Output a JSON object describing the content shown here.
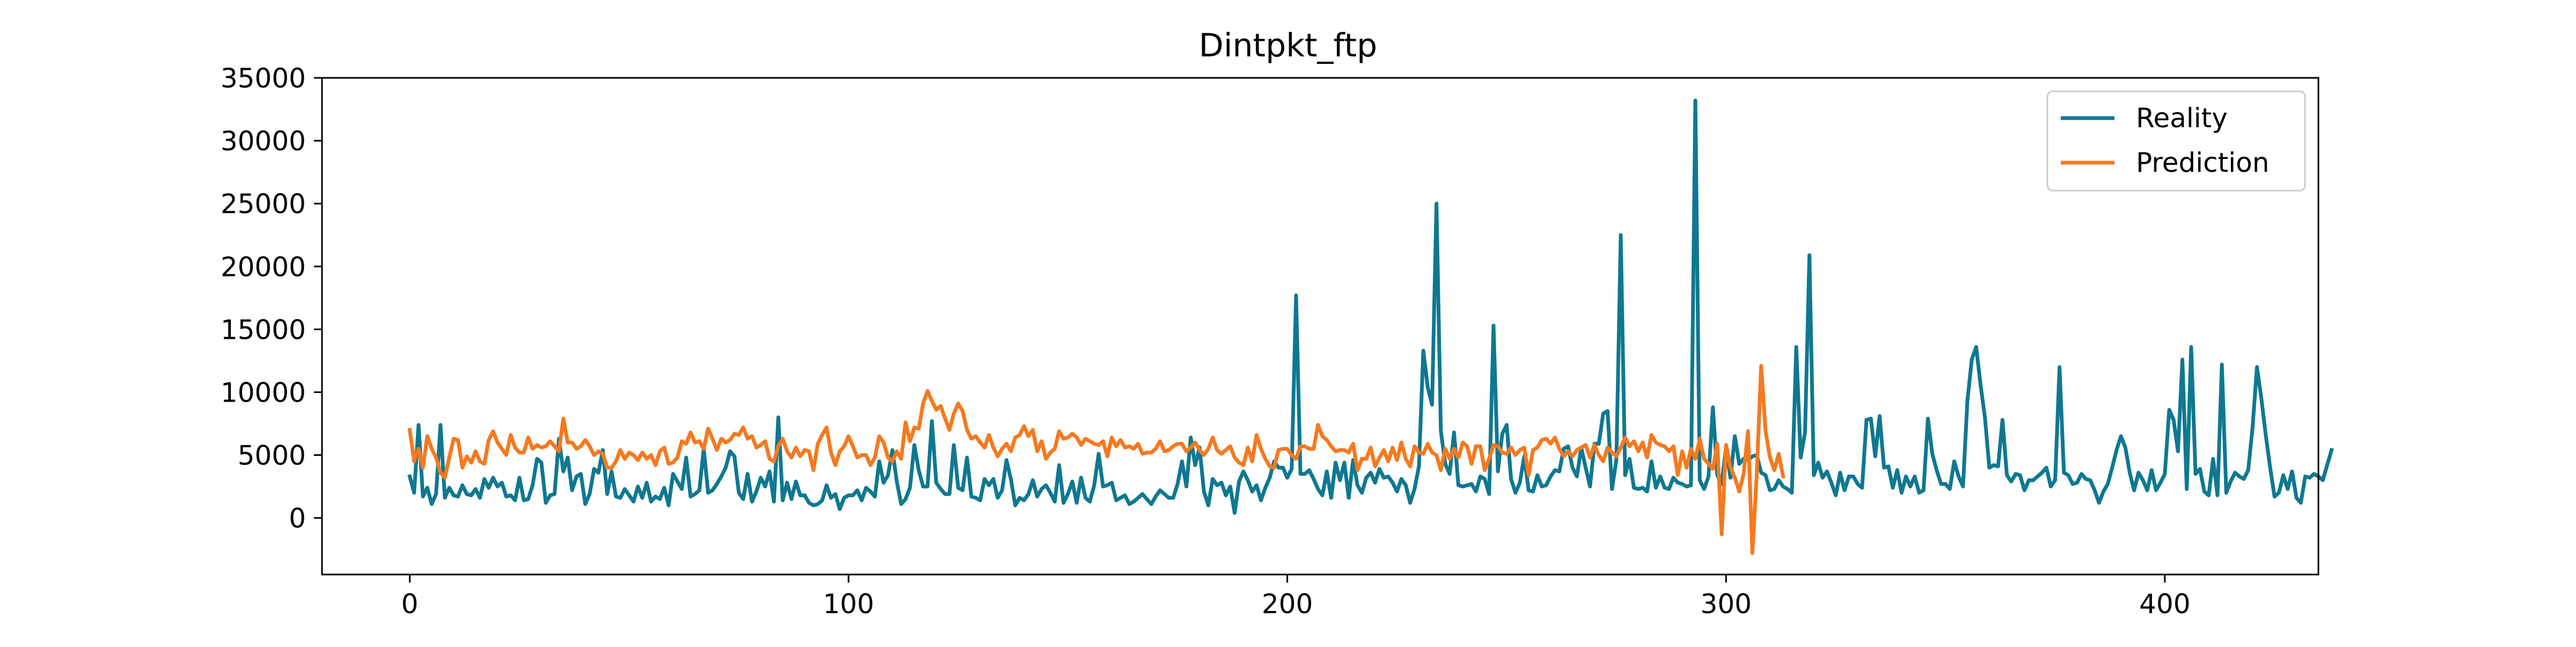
{
  "chart_data": {
    "type": "line",
    "title": "Dintpkt_ftp",
    "xlabel": "",
    "ylabel": "",
    "xlim": [
      -20,
      435
    ],
    "ylim": [
      -4500,
      35000
    ],
    "x_ticks": [
      0,
      100,
      200,
      300,
      400
    ],
    "y_ticks": [
      0,
      5000,
      10000,
      15000,
      20000,
      25000,
      30000,
      35000
    ],
    "grid": false,
    "legend_position": "top-right",
    "series": [
      {
        "name": "Reality",
        "color": "#0f7891",
        "x_start": 0,
        "values": [
          3300,
          2000,
          7400,
          1700,
          2400,
          1100,
          1900,
          7400,
          1600,
          2400,
          1800,
          1700,
          2600,
          1900,
          1800,
          2300,
          1600,
          3100,
          2400,
          3200,
          2500,
          2800,
          1700,
          1800,
          1400,
          3200,
          1400,
          1500,
          2600,
          4700,
          4400,
          1200,
          1800,
          1900,
          6300,
          3700,
          4800,
          2200,
          3300,
          3500,
          1100,
          1900,
          3900,
          3600,
          5400,
          1900,
          3700,
          1700,
          1600,
          2300,
          1800,
          1300,
          2500,
          1600,
          2800,
          1300,
          1700,
          1500,
          2400,
          1000,
          3500,
          2900,
          2300,
          4800,
          1700,
          1900,
          2200,
          5500,
          2000,
          2200,
          2700,
          3300,
          4000,
          5300,
          4900,
          2000,
          1500,
          3500,
          1300,
          2100,
          3200,
          2500,
          3700,
          1300,
          8000,
          1400,
          2800,
          1500,
          2900,
          1800,
          1800,
          1200,
          1000,
          1100,
          1400,
          2600,
          1600,
          1900,
          700,
          1600,
          1800,
          1800,
          2200,
          1400,
          2400,
          2100,
          1700,
          4500,
          2800,
          3400,
          5400,
          2900,
          1100,
          1500,
          2400,
          5800,
          3800,
          2500,
          2500,
          7700,
          2800,
          2300,
          1900,
          1900,
          5800,
          2400,
          2200,
          4800,
          1700,
          1600,
          1400,
          3100,
          2600,
          3100,
          1600,
          2200,
          4600,
          3100,
          1000,
          1600,
          1400,
          1900,
          3000,
          1700,
          2300,
          2600,
          2000,
          1300,
          4200,
          1200,
          1900,
          2900,
          1200,
          3200,
          1600,
          1300,
          2600,
          5100,
          2500,
          2600,
          2800,
          1400,
          1600,
          1800,
          1100,
          1300,
          1600,
          1900,
          1500,
          1100,
          1700,
          2200,
          1900,
          1600,
          1600,
          2700,
          4500,
          2500,
          6400,
          4200,
          5600,
          2100,
          1000,
          3100,
          2600,
          2800,
          1800,
          2500,
          400,
          2900,
          3700,
          3000,
          2100,
          2600,
          1400,
          2400,
          3200,
          4500,
          4000,
          4000,
          3200,
          3900,
          17700,
          3500,
          3500,
          3800,
          3100,
          2300,
          1800,
          3700,
          1600,
          4400,
          3000,
          4400,
          1600,
          4600,
          2600,
          2000,
          3200,
          3600,
          2800,
          3900,
          3200,
          3300,
          2800,
          2100,
          3100,
          2600,
          1200,
          2300,
          4100,
          13300,
          10400,
          9000,
          25000,
          6900,
          4300,
          3500,
          6800,
          2600,
          2500,
          2600,
          2700,
          2100,
          3300,
          3100,
          1900,
          15300,
          3700,
          6700,
          7400,
          3100,
          2000,
          2800,
          4900,
          2200,
          2100,
          3400,
          2500,
          2600,
          3300,
          3800,
          3700,
          5500,
          5700,
          4000,
          3300,
          5600,
          4000,
          2500,
          5900,
          5900,
          8300,
          8500,
          2300,
          4600,
          22500,
          3400,
          4700,
          2400,
          2300,
          2400,
          2100,
          4500,
          2400,
          3300,
          2400,
          2300,
          3200,
          2800,
          2700,
          2500,
          2600,
          33200,
          3000,
          2300,
          3300,
          8800,
          3400,
          2700,
          5600,
          3200,
          6500,
          4300,
          4700,
          4600,
          4900,
          5000,
          3600,
          3400,
          2200,
          2300,
          3000,
          2500,
          2300,
          2000,
          13600,
          4800,
          6800,
          20900,
          3400,
          4400,
          3200,
          3700,
          2800,
          1800,
          3600,
          2200,
          3300,
          3300,
          2700,
          2400,
          7800,
          7900,
          4900,
          8100,
          4000,
          4100,
          2400,
          3800,
          2000,
          3300,
          2500,
          3300,
          2000,
          2200,
          7900,
          5100,
          3800,
          2700,
          2700,
          2300,
          4500,
          3300,
          2500,
          9300,
          12600,
          13600,
          10600,
          8000,
          4000,
          4200,
          4100,
          7800,
          3400,
          2900,
          3500,
          3400,
          2200,
          3000,
          3000,
          3300,
          3600,
          4000,
          2500,
          3000,
          12000,
          3600,
          3400,
          2700,
          2800,
          3500,
          3100,
          3000,
          2200,
          1200,
          2100,
          2700,
          4000,
          5400,
          6500,
          5600,
          3600,
          2200,
          3600,
          3000,
          2200,
          3800,
          2200,
          2800,
          3500,
          8600,
          7800,
          5300,
          12600,
          2300,
          13600,
          3500,
          3900,
          2100,
          1800,
          4700,
          1800,
          12200,
          2000,
          2900,
          3600,
          3300,
          3100,
          3800,
          7200,
          12000,
          9500,
          6600,
          4000,
          1700,
          2000,
          3400,
          2300,
          3700,
          1600,
          1200,
          3300,
          3200,
          3500,
          3300,
          3000,
          4200,
          5400
        ]
      },
      {
        "name": "Prediction",
        "color": "#f5791f",
        "x_start": 0,
        "values": [
          7000,
          4500,
          5500,
          4000,
          6500,
          5500,
          4800,
          3600,
          3200,
          4800,
          6300,
          6200,
          4000,
          4900,
          4400,
          5300,
          4500,
          4300,
          6200,
          6900,
          6000,
          5500,
          5000,
          6600,
          5600,
          5200,
          5200,
          6400,
          5500,
          5800,
          5600,
          5700,
          6100,
          5700,
          5300,
          7900,
          6000,
          6000,
          5500,
          5700,
          6200,
          5700,
          5000,
          5300,
          5100,
          4000,
          4000,
          4500,
          5400,
          4700,
          5200,
          5000,
          4600,
          5200,
          4700,
          5000,
          4200,
          5300,
          5600,
          4300,
          4400,
          4800,
          6100,
          5900,
          6800,
          6000,
          6100,
          5500,
          7100,
          6300,
          5400,
          6300,
          6000,
          6200,
          6700,
          6600,
          7200,
          6300,
          6500,
          5600,
          5800,
          6100,
          4700,
          4500,
          5700,
          6300,
          5300,
          4800,
          5600,
          4900,
          5400,
          5300,
          3800,
          5900,
          6600,
          7200,
          5200,
          4200,
          5300,
          5700,
          6500,
          5700,
          4800,
          5000,
          5000,
          4200,
          4800,
          6500,
          6000,
          4800,
          4500,
          5300,
          4700,
          7600,
          6100,
          7200,
          7100,
          9100,
          10100,
          9300,
          8600,
          8900,
          7900,
          7000,
          8300,
          9100,
          8500,
          7000,
          6300,
          6500,
          6000,
          5600,
          6600,
          5600,
          4900,
          5500,
          5900,
          5300,
          6400,
          6600,
          7300,
          6500,
          7000,
          5300,
          6100,
          4700,
          5200,
          5500,
          6900,
          6300,
          6400,
          6700,
          6400,
          5800,
          6300,
          6100,
          5900,
          5800,
          6100,
          4900,
          6400,
          5700,
          6200,
          5600,
          5700,
          5500,
          5900,
          5100,
          5200,
          5200,
          5500,
          6100,
          5300,
          5400,
          5700,
          5900,
          5900,
          5300,
          5600,
          6000,
          5400,
          5000,
          5500,
          6400,
          5400,
          5100,
          5400,
          5700,
          4800,
          4400,
          4200,
          5600,
          4500,
          6600,
          5500,
          4700,
          4100,
          4000,
          5400,
          5500,
          5500,
          5000,
          4700,
          5700,
          5700,
          5500,
          5500,
          7400,
          6500,
          6200,
          5700,
          5300,
          5400,
          5400,
          5200,
          5900,
          3800,
          4700,
          4700,
          5600,
          4100,
          4800,
          5400,
          4500,
          5600,
          4600,
          6000,
          4700,
          4100,
          5700,
          5200,
          5100,
          5900,
          5200,
          5000,
          3800,
          5500,
          4700,
          5500,
          4800,
          6000,
          5700,
          4300,
          5700,
          5700,
          3800,
          4700,
          5800,
          5700,
          5200,
          5100,
          5600,
          5000,
          5400,
          5600,
          3400,
          5400,
          5600,
          6200,
          6300,
          5900,
          6400,
          5500,
          4900,
          5300,
          4900,
          5400,
          5600,
          5800,
          4800,
          5800,
          5000,
          4500,
          5600,
          5200,
          4900,
          5600,
          6400,
          5700,
          6100,
          5300,
          6000,
          4800,
          6600,
          6000,
          5800,
          5700,
          5300,
          5700,
          3400,
          5300,
          4000,
          5500,
          4700,
          6300,
          4700,
          4300,
          3900,
          5900,
          -1300,
          5800,
          4000,
          3200,
          2100,
          3500,
          6900,
          -2800,
          3500,
          12100,
          6900,
          4800,
          3800,
          5100,
          3300
        ]
      }
    ]
  }
}
